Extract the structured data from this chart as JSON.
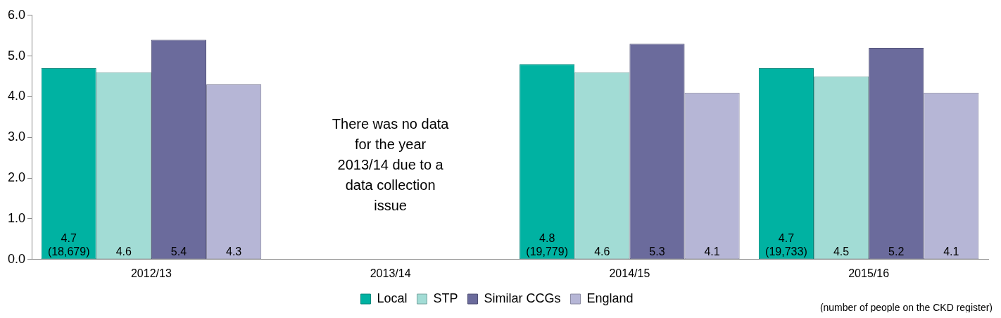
{
  "chart_data": {
    "type": "bar",
    "categories": [
      "2012/13",
      "2013/14",
      "2014/15",
      "2015/16"
    ],
    "series": [
      {
        "name": "Local",
        "color": "#00b2a2",
        "values": [
          4.7,
          null,
          4.8,
          4.7
        ],
        "value_labels": [
          "4.7 (18,679)",
          null,
          "4.8 (19,779)",
          "4.7 (19,733)"
        ]
      },
      {
        "name": "STP",
        "color": "#a2dcd5",
        "values": [
          4.6,
          null,
          4.6,
          4.5
        ],
        "value_labels": [
          "4.6",
          null,
          "4.6",
          "4.5"
        ]
      },
      {
        "name": "Similar CCGs",
        "color": "#6b6b9c",
        "values": [
          5.4,
          null,
          5.3,
          5.2
        ],
        "value_labels": [
          "5.4",
          null,
          "5.3",
          "5.2"
        ]
      },
      {
        "name": "England",
        "color": "#b6b6d6",
        "values": [
          4.3,
          null,
          4.1,
          4.1
        ],
        "value_labels": [
          "4.3",
          null,
          "4.1",
          "4.1"
        ]
      }
    ],
    "ylim": [
      0,
      6
    ],
    "yticks": [
      {
        "value": 0,
        "label": "0.0"
      },
      {
        "value": 1,
        "label": "1.0"
      },
      {
        "value": 2,
        "label": "2.0"
      },
      {
        "value": 3,
        "label": "3.0"
      },
      {
        "value": 4,
        "label": "4.0"
      },
      {
        "value": 5,
        "label": "5.0"
      },
      {
        "value": 6,
        "label": "6.0"
      }
    ],
    "grid": false,
    "legend": "bottom",
    "annotations": [
      "There was no data for the year 2013/14 due to a data collection issue",
      "(number of people on the CKD register)"
    ]
  }
}
